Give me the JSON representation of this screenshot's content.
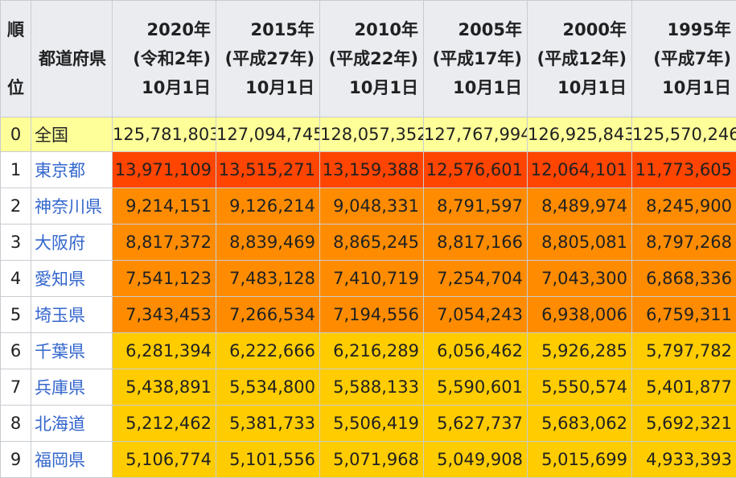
{
  "header": {
    "rank_label": "順位",
    "prefecture_label": "都道府県",
    "years": [
      {
        "year": "2020年",
        "era": "(令和2年)",
        "date": "10月1日"
      },
      {
        "year": "2015年",
        "era": "(平成27年)",
        "date": "10月1日"
      },
      {
        "year": "2010年",
        "era": "(平成22年)",
        "date": "10月1日"
      },
      {
        "year": "2005年",
        "era": "(平成17年)",
        "date": "10月1日"
      },
      {
        "year": "2000年",
        "era": "(平成12年)",
        "date": "10月1日"
      },
      {
        "year": "1995年",
        "era": "(平成7年)",
        "date": "10月1日"
      }
    ]
  },
  "colors": {
    "total": "#ffff99",
    "tier_10m": "#ff4500",
    "tier_7m": "#ff8c00",
    "tier_5m": "#ffcc00",
    "link": "#3366cc"
  },
  "rows": [
    {
      "rank": "0",
      "name": "全国",
      "link": false,
      "tier": "total",
      "values": [
        "125,781,803",
        "127,094,745",
        "128,057,352",
        "127,767,994",
        "126,925,843",
        "125,570,246"
      ]
    },
    {
      "rank": "1",
      "name": "東京都",
      "link": true,
      "tier": "tier_10m",
      "values": [
        "13,971,109",
        "13,515,271",
        "13,159,388",
        "12,576,601",
        "12,064,101",
        "11,773,605"
      ]
    },
    {
      "rank": "2",
      "name": "神奈川県",
      "link": true,
      "tier": "tier_7m",
      "values": [
        "9,214,151",
        "9,126,214",
        "9,048,331",
        "8,791,597",
        "8,489,974",
        "8,245,900"
      ]
    },
    {
      "rank": "3",
      "name": "大阪府",
      "link": true,
      "tier": "tier_7m",
      "values": [
        "8,817,372",
        "8,839,469",
        "8,865,245",
        "8,817,166",
        "8,805,081",
        "8,797,268"
      ]
    },
    {
      "rank": "4",
      "name": "愛知県",
      "link": true,
      "tier": "tier_7m",
      "values": [
        "7,541,123",
        "7,483,128",
        "7,410,719",
        "7,254,704",
        "7,043,300",
        "6,868,336"
      ]
    },
    {
      "rank": "5",
      "name": "埼玉県",
      "link": true,
      "tier": "tier_7m",
      "values": [
        "7,343,453",
        "7,266,534",
        "7,194,556",
        "7,054,243",
        "6,938,006",
        "6,759,311"
      ]
    },
    {
      "rank": "6",
      "name": "千葉県",
      "link": true,
      "tier": "tier_5m",
      "values": [
        "6,281,394",
        "6,222,666",
        "6,216,289",
        "6,056,462",
        "5,926,285",
        "5,797,782"
      ]
    },
    {
      "rank": "7",
      "name": "兵庫県",
      "link": true,
      "tier": "tier_5m",
      "values": [
        "5,438,891",
        "5,534,800",
        "5,588,133",
        "5,590,601",
        "5,550,574",
        "5,401,877"
      ]
    },
    {
      "rank": "8",
      "name": "北海道",
      "link": true,
      "tier": "tier_5m",
      "values": [
        "5,212,462",
        "5,381,733",
        "5,506,419",
        "5,627,737",
        "5,683,062",
        "5,692,321"
      ]
    },
    {
      "rank": "9",
      "name": "福岡県",
      "link": true,
      "tier": "tier_5m",
      "values": [
        "5,106,774",
        "5,101,556",
        "5,071,968",
        "5,049,908",
        "5,015,699",
        "4,933,393"
      ]
    }
  ]
}
